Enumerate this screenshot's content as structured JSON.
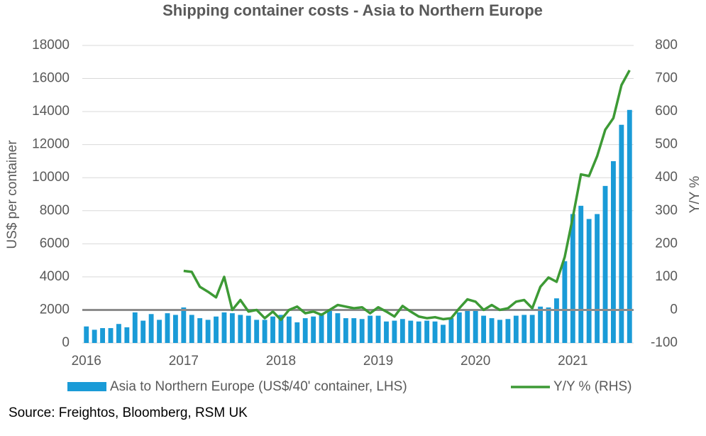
{
  "chart_data": {
    "type": "bar_line",
    "title": "Shipping container costs - Asia to Northern Europe",
    "y_label": "US$ per container",
    "y2_label": "Y/Y %",
    "source": "Source: Freightos, Bloomberg, RSM UK",
    "categories": [
      "2016",
      null,
      null,
      null,
      null,
      null,
      null,
      null,
      null,
      null,
      null,
      null,
      "2017",
      null,
      null,
      null,
      null,
      null,
      null,
      null,
      null,
      null,
      null,
      null,
      "2018",
      null,
      null,
      null,
      null,
      null,
      null,
      null,
      null,
      null,
      null,
      null,
      "2019",
      null,
      null,
      null,
      null,
      null,
      null,
      null,
      null,
      null,
      null,
      null,
      "2020",
      null,
      null,
      null,
      null,
      null,
      null,
      null,
      null,
      null,
      null,
      null,
      "2021",
      null,
      null,
      null,
      null,
      null,
      null,
      null
    ],
    "series": [
      {
        "name": "Asia to Northern Europe (US$/40' container, LHS)",
        "color": "#1a9bd7",
        "kind": "bar",
        "values": [
          1000,
          800,
          900,
          900,
          1150,
          950,
          1850,
          1350,
          1750,
          1400,
          1800,
          1700,
          2150,
          1700,
          1500,
          1400,
          1600,
          1850,
          1800,
          1700,
          1650,
          1400,
          1400,
          1600,
          1700,
          1600,
          1250,
          1500,
          1600,
          1800,
          2000,
          1800,
          1500,
          1500,
          1450,
          1650,
          1650,
          1300,
          1350,
          1450,
          1350,
          1300,
          1350,
          1300,
          1100,
          1500,
          1850,
          1950,
          2050,
          1650,
          1500,
          1400,
          1450,
          1650,
          1700,
          1700,
          2200,
          2150,
          2700,
          4950,
          7800,
          8300,
          7500,
          7800,
          9500,
          11000,
          13200,
          14100
        ]
      },
      {
        "name": "Y/Y % (RHS)",
        "color": "#3d9a35",
        "kind": "line",
        "axis": "y2",
        "values": [
          null,
          null,
          null,
          null,
          null,
          null,
          null,
          null,
          null,
          null,
          null,
          null,
          118,
          115,
          70,
          55,
          38,
          100,
          0,
          30,
          -5,
          0,
          -25,
          -5,
          -30,
          0,
          10,
          -10,
          -5,
          -15,
          0,
          15,
          10,
          5,
          8,
          -10,
          8,
          -5,
          -20,
          12,
          -5,
          -20,
          -25,
          -22,
          -28,
          -25,
          5,
          32,
          25,
          0,
          15,
          0,
          5,
          25,
          30,
          5,
          70,
          98,
          85,
          160,
          280,
          410,
          405,
          465,
          545,
          580,
          680,
          725
        ]
      }
    ],
    "ylim": [
      0,
      18000
    ],
    "yticks": [
      0,
      2000,
      4000,
      6000,
      8000,
      10000,
      12000,
      14000,
      16000,
      18000
    ],
    "y2lim": [
      -100,
      800
    ],
    "y2ticks": [
      -100,
      0,
      100,
      200,
      300,
      400,
      500,
      600,
      700,
      800
    ],
    "grid": true,
    "legend": "bottom"
  }
}
